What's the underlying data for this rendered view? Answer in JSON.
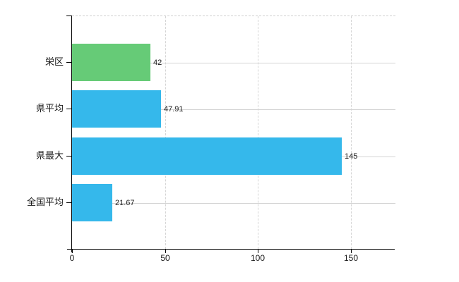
{
  "chart_data": {
    "type": "bar",
    "orientation": "horizontal",
    "categories": [
      "栄区",
      "県平均",
      "県最大",
      "全国平均"
    ],
    "values": [
      42,
      47.91,
      145,
      21.67
    ],
    "value_labels": [
      "42",
      "47.91",
      "145",
      "21.67"
    ],
    "bar_colors": [
      "#66CB77",
      "#35B8EB",
      "#35B8EB",
      "#35B8EB"
    ],
    "xlim": [
      0,
      174
    ],
    "xticks": [
      0,
      50,
      100,
      150
    ],
    "xtick_labels": [
      "0",
      "50",
      "100",
      "150"
    ],
    "grid": true,
    "legend": false,
    "axis_color": "#000000",
    "gridline_color": "#d4d4d4",
    "text_color": "#1a1a1a",
    "background_color": "#ffffff"
  }
}
